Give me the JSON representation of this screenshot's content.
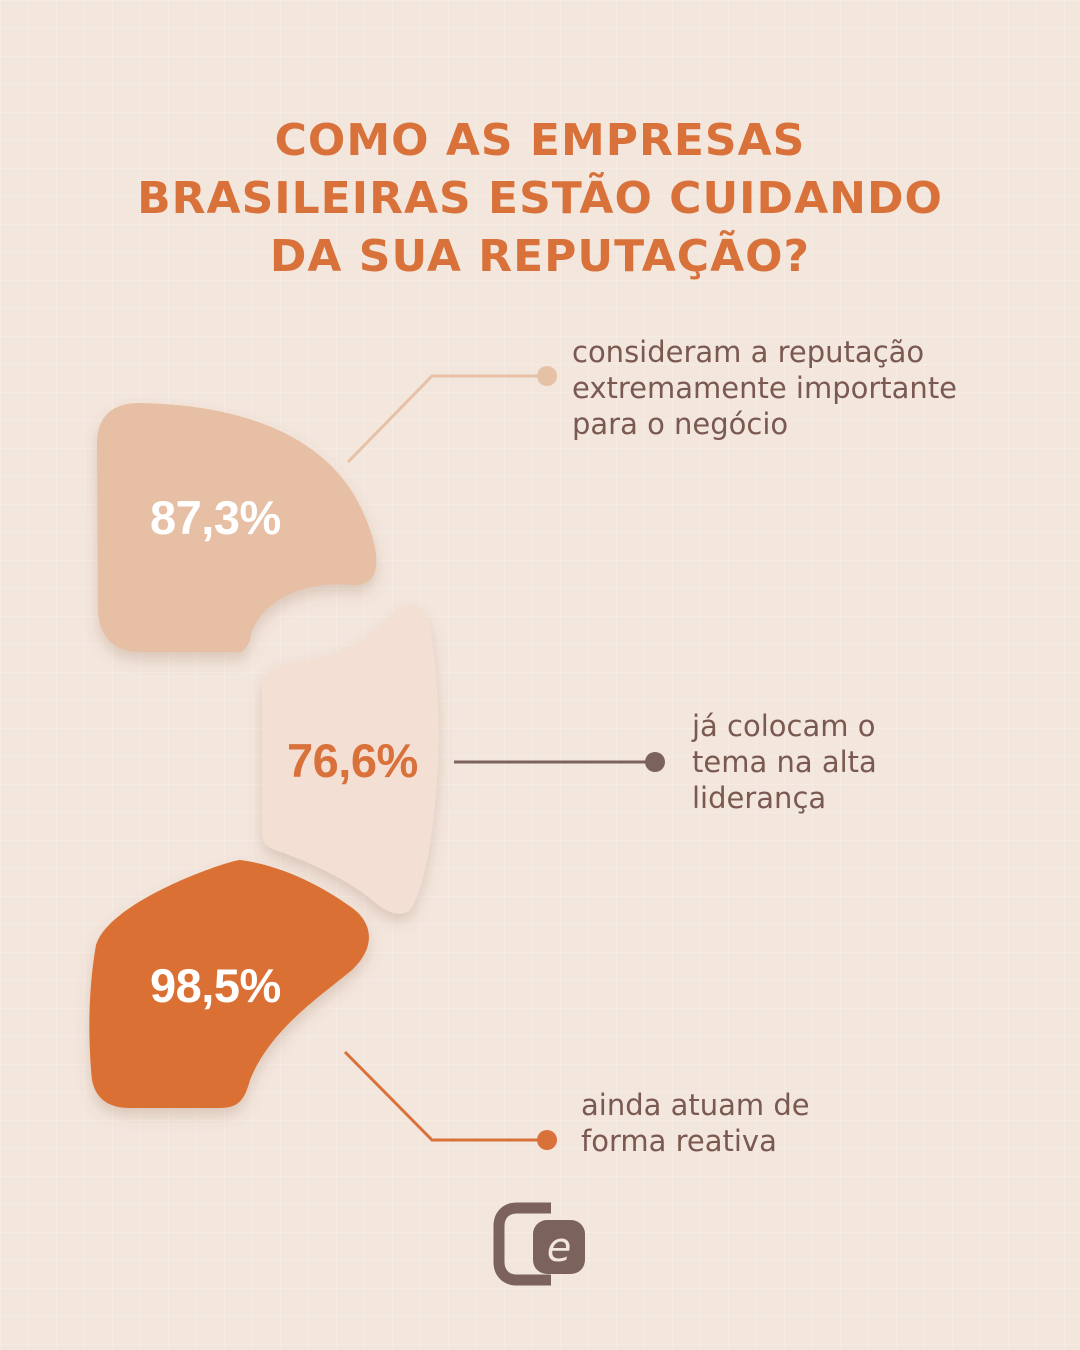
{
  "title": {
    "lines": [
      "COMO AS EMPRESAS",
      "BRASILEIRAS ESTÃO CUIDANDO",
      "DA SUA REPUTAÇÃO?"
    ]
  },
  "stats": [
    {
      "value": "87,3%",
      "value_percent": 87.3,
      "description_lines": [
        "consideram a reputação",
        "extremamente importante",
        "para o negócio"
      ],
      "shape_color": "#e6bfa4",
      "value_color": "#ffffff",
      "connector_color": "#e6c1a6"
    },
    {
      "value": "76,6%",
      "value_percent": 76.6,
      "description_lines": [
        "já colocam o",
        "tema na alta",
        "liderança"
      ],
      "shape_color": "#f3dfd3",
      "value_color": "#d9713a",
      "connector_color": "#7b635c"
    },
    {
      "value": "98,5%",
      "value_percent": 98.5,
      "description_lines": [
        "ainda atuam de",
        "forma reativa"
      ],
      "shape_color": "#db7036",
      "value_color": "#ffffff",
      "connector_color": "#d9713a"
    }
  ],
  "logo": {
    "icon": "e-logo-icon",
    "letter": "e",
    "color": "#7b635c"
  },
  "colors": {
    "background": "#f3e6dd",
    "accent": "#d9713a",
    "text": "#7a5a50"
  }
}
